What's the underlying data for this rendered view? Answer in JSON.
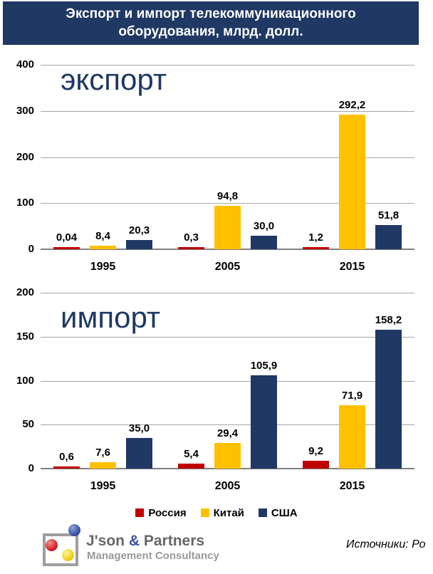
{
  "header": {
    "title_lines": [
      "Экспорт и импорт телекоммуникационного",
      "оборудования, млрд. долл."
    ]
  },
  "colors": {
    "banner_bg": "#1F3864",
    "russia": "#C00000",
    "china": "#FFC000",
    "usa": "#1F3864",
    "gridline": "#A6A6A6",
    "axis": "#7f7f7f"
  },
  "chart_data": [
    {
      "type": "bar",
      "title": "экспорт",
      "categories": [
        "1995",
        "2005",
        "2015"
      ],
      "series": [
        {
          "name": "Россия",
          "color": "#C00000",
          "values": [
            0.04,
            0.3,
            1.2
          ],
          "labels": [
            "0,04",
            "0,3",
            "1,2"
          ]
        },
        {
          "name": "Китай",
          "color": "#FFC000",
          "values": [
            8.4,
            94.8,
            292.2
          ],
          "labels": [
            "8,4",
            "94,8",
            "292,2"
          ]
        },
        {
          "name": "США",
          "color": "#1F3864",
          "values": [
            20.3,
            30.0,
            51.8
          ],
          "labels": [
            "20,3",
            "30,0",
            "51,8"
          ]
        }
      ],
      "xlabel": "",
      "ylabel": "",
      "ylim": [
        0,
        400
      ],
      "yticks": [
        0,
        100,
        200,
        300,
        400
      ],
      "grid": true,
      "legend_position": "none"
    },
    {
      "type": "bar",
      "title": "импорт",
      "categories": [
        "1995",
        "2005",
        "2015"
      ],
      "series": [
        {
          "name": "Россия",
          "color": "#C00000",
          "values": [
            0.6,
            5.4,
            9.2
          ],
          "labels": [
            "0,6",
            "5,4",
            "9,2"
          ]
        },
        {
          "name": "Китай",
          "color": "#FFC000",
          "values": [
            7.6,
            29.4,
            71.9
          ],
          "labels": [
            "7,6",
            "29,4",
            "71,9"
          ]
        },
        {
          "name": "США",
          "color": "#1F3864",
          "values": [
            35.0,
            105.9,
            158.2
          ],
          "labels": [
            "35,0",
            "105,9",
            "158,2"
          ]
        }
      ],
      "xlabel": "",
      "ylabel": "",
      "ylim": [
        0,
        200
      ],
      "yticks": [
        0,
        50,
        100,
        150,
        200
      ],
      "grid": true,
      "legend_position": "bottom"
    }
  ],
  "legend": {
    "items": [
      {
        "label": "Россия",
        "color": "#C00000"
      },
      {
        "label": "Китай",
        "color": "#FFC000"
      },
      {
        "label": "США",
        "color": "#1F3864"
      }
    ]
  },
  "footer": {
    "logo": {
      "name_part1": "J'son",
      "ampersand": "&",
      "name_part2": "Partners",
      "subtitle": "Management Consultancy"
    },
    "source_text": "Источники: Ро"
  }
}
